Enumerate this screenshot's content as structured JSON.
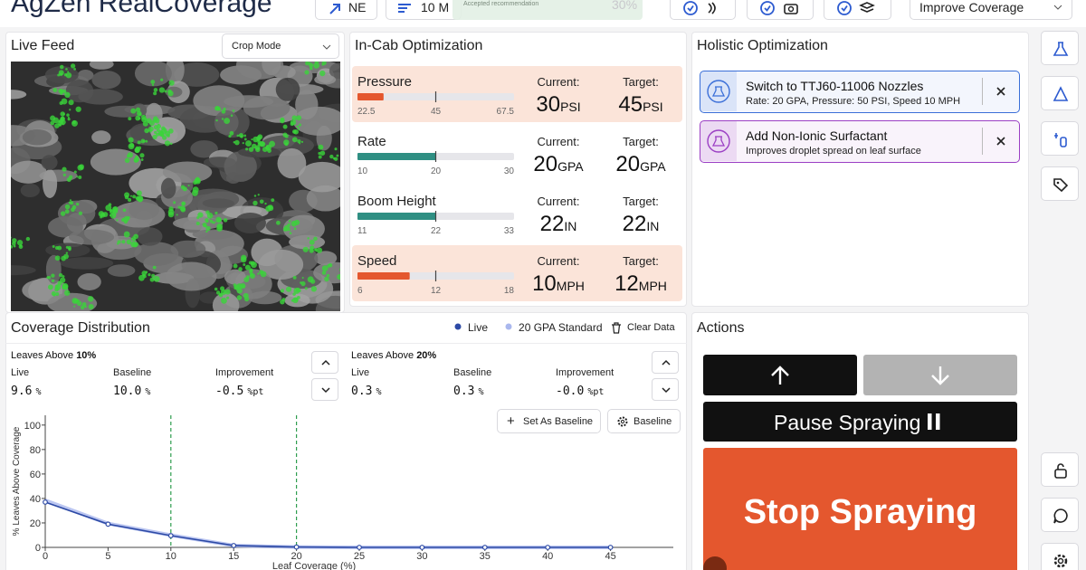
{
  "header": {
    "title": "AgZen RealCoverage",
    "heading": "NE",
    "speed": "10 M",
    "toast": "Accepted recommendation",
    "coverage": "30%",
    "goal": "Improve Coverage"
  },
  "live_feed": {
    "title": "Live Feed",
    "mode": "Crop Mode"
  },
  "in_cab": {
    "title": "In-Cab Optimization",
    "current_label": "Current:",
    "target_label": "Target:",
    "rows": [
      {
        "name": "Pressure",
        "lim": [
          22.5,
          67.5
        ],
        "ticks": [
          22.5,
          45,
          67.5
        ],
        "current": 30,
        "target": 45,
        "unit": "PSI",
        "color": "#e4572e",
        "highlight": true
      },
      {
        "name": "Rate",
        "lim": [
          10,
          30
        ],
        "ticks": [
          10,
          20,
          30
        ],
        "current": 20,
        "target": 20,
        "unit": "GPA",
        "color": "#2f8f83",
        "highlight": false
      },
      {
        "name": "Boom Height",
        "lim": [
          11,
          33
        ],
        "ticks": [
          11,
          22,
          33
        ],
        "current": 22,
        "target": 22,
        "unit": "IN",
        "color": "#2f8f83",
        "highlight": false
      },
      {
        "name": "Speed",
        "lim": [
          6,
          18
        ],
        "ticks": [
          6,
          12,
          18
        ],
        "current": 10,
        "target": 12,
        "unit": "MPH",
        "color": "#e4572e",
        "highlight": true
      }
    ]
  },
  "holistic": {
    "title": "Holistic Optimization",
    "recommendations": [
      {
        "title": "Switch to TTJ60-11006 Nozzles",
        "detail": "Rate: 20 GPA, Pressure: 50 PSI, Speed 10 MPH",
        "color": "#3b6fd8"
      },
      {
        "title": "Add Non-Ionic Surfactant",
        "detail": "Improves droplet spread on leaf surface",
        "color": "#9b3fc4"
      }
    ]
  },
  "coverage": {
    "title": "Coverage Distribution",
    "clear": "Clear Data",
    "set_baseline": "Set As Baseline",
    "baseline": "Baseline",
    "stats": [
      {
        "label": "Leaves Above",
        "threshold": "10%",
        "columns": [
          {
            "name": "Live",
            "value": "9.6",
            "unit": "%"
          },
          {
            "name": "Baseline",
            "value": "10.0",
            "unit": "%"
          },
          {
            "name": "Improvement",
            "value": "-0.5",
            "unit": "%pt"
          }
        ]
      },
      {
        "label": "Leaves Above",
        "threshold": "20%",
        "columns": [
          {
            "name": "Live",
            "value": "0.3",
            "unit": "%"
          },
          {
            "name": "Baseline",
            "value": "0.3",
            "unit": "%"
          },
          {
            "name": "Improvement",
            "value": "-0.0",
            "unit": "%pt"
          }
        ]
      }
    ]
  },
  "chart_data": {
    "type": "line",
    "xlabel": "Leaf Coverage (%)",
    "ylabel": "% Leaves Above Coverage",
    "x": [
      0,
      5,
      10,
      15,
      20,
      25,
      30,
      35,
      40,
      45
    ],
    "series": [
      {
        "name": "Live",
        "color": "#2d4aa6",
        "values": [
          37,
          19,
          9.6,
          1.5,
          0.3,
          0,
          0,
          0,
          0,
          0
        ]
      },
      {
        "name": "20 GPA Standard",
        "color": "#aab8ee",
        "values": [
          38.5,
          19.5,
          10,
          1.5,
          0.3,
          0,
          0,
          0,
          0,
          0
        ]
      }
    ],
    "xlim": [
      0,
      50
    ],
    "xticks": [
      0,
      5,
      10,
      15,
      20,
      25,
      30,
      35,
      40,
      45
    ],
    "ylim": [
      0,
      108
    ],
    "yticks": [
      0,
      20,
      40,
      60,
      80,
      100
    ],
    "thresholds": [
      10,
      20
    ],
    "threshold_color": "#2e9d4e"
  },
  "actions": {
    "title": "Actions",
    "pause": "Pause Spraying",
    "stop": "Stop Spraying"
  }
}
